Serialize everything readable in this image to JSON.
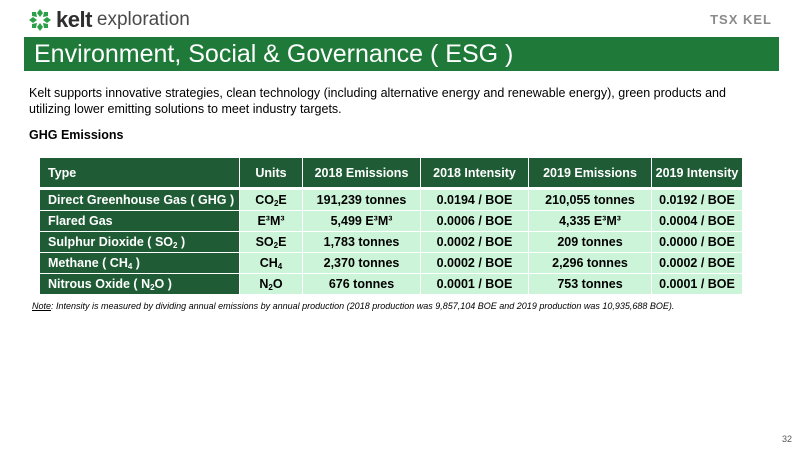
{
  "brand": {
    "kelt": "kelt",
    "exploration": "exploration",
    "tsx": "TSX KEL",
    "mark_color": "#2e9e4b"
  },
  "title": "Environment, Social & Governance ( ESG )",
  "intro": "Kelt supports innovative strategies, clean technology (including alternative energy and renewable energy), green products and utilizing lower emitting solutions to meet industry targets.",
  "section_heading": "GHG Emissions",
  "table": {
    "headers": [
      "Type",
      "Units",
      "2018 Emissions",
      "2018 Intensity",
      "2019 Emissions",
      "2019 Intensity"
    ],
    "rows": [
      {
        "type": "Direct Greenhouse Gas ( GHG )",
        "units": "CO2E",
        "e2018": "191,239 tonnes",
        "i2018": "0.0194 / BOE",
        "e2019": "210,055 tonnes",
        "i2019": "0.0192 / BOE"
      },
      {
        "type": "Flared Gas",
        "units": "E³M³",
        "e2018": "5,499 E³M³",
        "i2018": "0.0006 / BOE",
        "e2019": "4,335 E³M³",
        "i2019": "0.0004 / BOE"
      },
      {
        "type": "Sulphur Dioxide ( SO2 )",
        "units": "SO2E",
        "e2018": "1,783 tonnes",
        "i2018": "0.0002 / BOE",
        "e2019": "209 tonnes",
        "i2019": "0.0000 / BOE"
      },
      {
        "type": "Methane ( CH4 )",
        "units": "CH4",
        "e2018": "2,370 tonnes",
        "i2018": "0.0002 / BOE",
        "e2019": "2,296 tonnes",
        "i2019": "0.0002 / BOE"
      },
      {
        "type": "Nitrous Oxide ( N2O )",
        "units": "N2O",
        "e2018": "676 tonnes",
        "i2018": "0.0001 / BOE",
        "e2019": "753 tonnes",
        "i2019": "0.0001 / BOE"
      }
    ]
  },
  "note": {
    "label": "Note",
    "text": ": Intensity is measured by dividing annual emissions by annual production (2018 production was 9,857,104 BOE and 2019 production was 10,935,688 BOE)."
  },
  "page_number": "32"
}
